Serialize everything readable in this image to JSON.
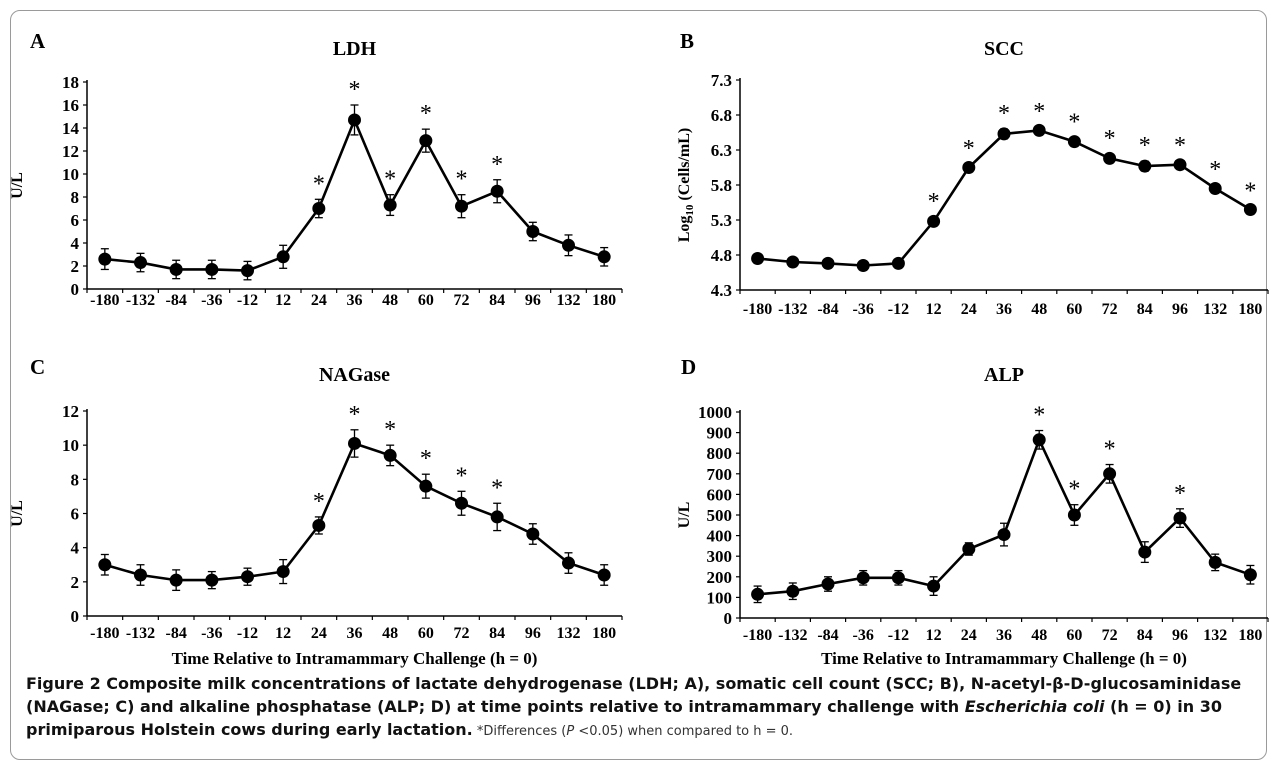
{
  "x_axis_title": "Time Relative to Intramammary Challenge (h = 0)",
  "x_ticks": [
    "-180",
    "-132",
    "-84",
    "-36",
    "-12",
    "12",
    "24",
    "36",
    "48",
    "60",
    "72",
    "84",
    "96",
    "132",
    "180"
  ],
  "caption": {
    "lead": "Figure 2 Composite milk concentrations of lactate dehydrogenase (LDH; A), somatic cell count (SCC; B), N-acetyl-β-D-glucosaminidase (NAGase; C) and alkaline phosphatase (ALP; D) at time points relative to intramammary challenge with ",
    "organism": "Escherichia coli",
    "tail": " (h = 0) in 30 primiparous Holstein cows during early lactation.",
    "note_a": " *Differences (",
    "note_p": "P",
    "note_b": " <0.05) when compared to h = 0."
  },
  "chart_data": [
    {
      "type": "line",
      "panel": "A",
      "title": "LDH",
      "ylabel": "U/L",
      "xlabel": "",
      "categories": [
        "-180",
        "-132",
        "-84",
        "-36",
        "-12",
        "12",
        "24",
        "36",
        "48",
        "60",
        "72",
        "84",
        "96",
        "132",
        "180"
      ],
      "values": [
        2.6,
        2.3,
        1.7,
        1.7,
        1.6,
        2.8,
        7.0,
        14.7,
        7.3,
        12.9,
        7.2,
        8.5,
        5.0,
        3.8,
        2.8
      ],
      "errors": [
        0.9,
        0.8,
        0.8,
        0.8,
        0.8,
        1.0,
        0.8,
        1.3,
        0.9,
        1.0,
        1.0,
        1.0,
        0.8,
        0.9,
        0.8
      ],
      "significant": [
        false,
        false,
        false,
        false,
        false,
        false,
        true,
        true,
        true,
        true,
        true,
        true,
        false,
        false,
        false
      ],
      "ylim": [
        0,
        18
      ],
      "yticks": [
        "0",
        "2",
        "4",
        "6",
        "8",
        "10",
        "12",
        "14",
        "16",
        "18"
      ],
      "grid": false,
      "legend": "none"
    },
    {
      "type": "line",
      "panel": "B",
      "title": "SCC",
      "ylabel": "Log10 (Cells/mL)",
      "ylabel_parts": {
        "base": "Log",
        "sub": "10",
        "rest": " (Cells/mL)"
      },
      "xlabel": "",
      "categories": [
        "-180",
        "-132",
        "-84",
        "-36",
        "-12",
        "12",
        "24",
        "36",
        "48",
        "60",
        "72",
        "84",
        "96",
        "132",
        "180"
      ],
      "values": [
        4.75,
        4.7,
        4.68,
        4.65,
        4.68,
        5.28,
        6.05,
        6.53,
        6.58,
        6.42,
        6.18,
        6.07,
        6.09,
        5.75,
        5.45
      ],
      "errors": [
        0.04,
        0.03,
        0.03,
        0.03,
        0.03,
        0.06,
        0.05,
        0.07,
        0.05,
        0.06,
        0.06,
        0.07,
        0.05,
        0.05,
        0.04
      ],
      "significant": [
        false,
        false,
        false,
        false,
        false,
        true,
        true,
        true,
        true,
        true,
        true,
        true,
        true,
        true,
        true
      ],
      "ylim": [
        4.3,
        7.3
      ],
      "yticks": [
        "4.3",
        "4.8",
        "5.3",
        "5.8",
        "6.3",
        "6.8",
        "7.3"
      ],
      "grid": false,
      "legend": "none"
    },
    {
      "type": "line",
      "panel": "C",
      "title": "NAGase",
      "ylabel": "U/L",
      "xlabel": "Time Relative to Intramammary Challenge (h = 0)",
      "categories": [
        "-180",
        "-132",
        "-84",
        "-36",
        "-12",
        "12",
        "24",
        "36",
        "48",
        "60",
        "72",
        "84",
        "96",
        "132",
        "180"
      ],
      "values": [
        3.0,
        2.4,
        2.1,
        2.1,
        2.3,
        2.6,
        5.3,
        10.1,
        9.4,
        7.6,
        6.6,
        5.8,
        4.8,
        3.1,
        2.4
      ],
      "errors": [
        0.6,
        0.6,
        0.6,
        0.5,
        0.5,
        0.7,
        0.5,
        0.8,
        0.6,
        0.7,
        0.7,
        0.8,
        0.6,
        0.6,
        0.6
      ],
      "significant": [
        false,
        false,
        false,
        false,
        false,
        false,
        true,
        true,
        true,
        true,
        true,
        true,
        false,
        false,
        false
      ],
      "ylim": [
        0,
        12
      ],
      "yticks": [
        "0",
        "2",
        "4",
        "6",
        "8",
        "10",
        "12"
      ],
      "grid": false,
      "legend": "none"
    },
    {
      "type": "line",
      "panel": "D",
      "title": "ALP",
      "ylabel": "U/L",
      "xlabel": "Time Relative to Intramammary Challenge (h = 0)",
      "categories": [
        "-180",
        "-132",
        "-84",
        "-36",
        "-12",
        "12",
        "24",
        "36",
        "48",
        "60",
        "72",
        "84",
        "96",
        "132",
        "180"
      ],
      "values": [
        115,
        130,
        165,
        195,
        195,
        155,
        335,
        405,
        865,
        500,
        700,
        320,
        485,
        270,
        210
      ],
      "errors": [
        40,
        40,
        35,
        35,
        35,
        45,
        30,
        55,
        45,
        50,
        45,
        50,
        45,
        40,
        45
      ],
      "significant": [
        false,
        false,
        false,
        false,
        false,
        false,
        false,
        false,
        true,
        true,
        true,
        false,
        true,
        false,
        false
      ],
      "ylim": [
        0,
        1000
      ],
      "yticks": [
        "0",
        "100",
        "200",
        "300",
        "400",
        "500",
        "600",
        "700",
        "800",
        "900",
        "1000"
      ],
      "grid": false,
      "legend": "none"
    }
  ]
}
